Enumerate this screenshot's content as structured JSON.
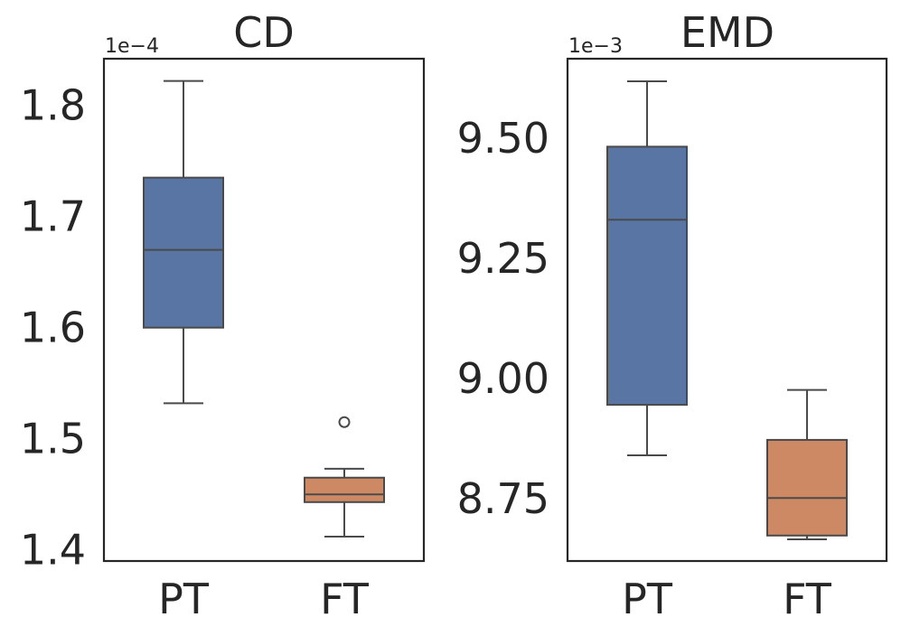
{
  "chart_data": [
    {
      "type": "box",
      "title": "CD",
      "multiplier_label": "1e−4",
      "categories": [
        "PT",
        "FT"
      ],
      "ylim": [
        1.39,
        1.842
      ],
      "yticks": [
        {
          "value": 1.4,
          "label": "1.4"
        },
        {
          "value": 1.5,
          "label": "1.5"
        },
        {
          "value": 1.6,
          "label": "1.6"
        },
        {
          "value": 1.7,
          "label": "1.7"
        },
        {
          "value": 1.8,
          "label": "1.8"
        }
      ],
      "boxes": [
        {
          "category": "PT",
          "whisker_low": 1.532,
          "q1": 1.6,
          "median": 1.67,
          "q3": 1.735,
          "whisker_high": 1.822,
          "fliers": [],
          "color": "#5875a4"
        },
        {
          "category": "FT",
          "whisker_low": 1.412,
          "q1": 1.443,
          "median": 1.45,
          "q3": 1.465,
          "whisker_high": 1.473,
          "fliers": [
            1.515
          ],
          "color": "#cc8963"
        }
      ]
    },
    {
      "type": "box",
      "title": "EMD",
      "multiplier_label": "1e−3",
      "categories": [
        "PT",
        "FT"
      ],
      "ylim": [
        8.62,
        9.665
      ],
      "yticks": [
        {
          "value": 8.75,
          "label": "8.75"
        },
        {
          "value": 9.0,
          "label": "9.00"
        },
        {
          "value": 9.25,
          "label": "9.25"
        },
        {
          "value": 9.5,
          "label": "9.50"
        }
      ],
      "boxes": [
        {
          "category": "PT",
          "whisker_low": 8.84,
          "q1": 8.945,
          "median": 9.33,
          "q3": 9.482,
          "whisker_high": 9.618,
          "fliers": [],
          "color": "#5875a4"
        },
        {
          "category": "FT",
          "whisker_low": 8.665,
          "q1": 8.673,
          "median": 8.751,
          "q3": 8.872,
          "whisker_high": 8.976,
          "fliers": [],
          "color": "#cc8963"
        }
      ]
    }
  ]
}
